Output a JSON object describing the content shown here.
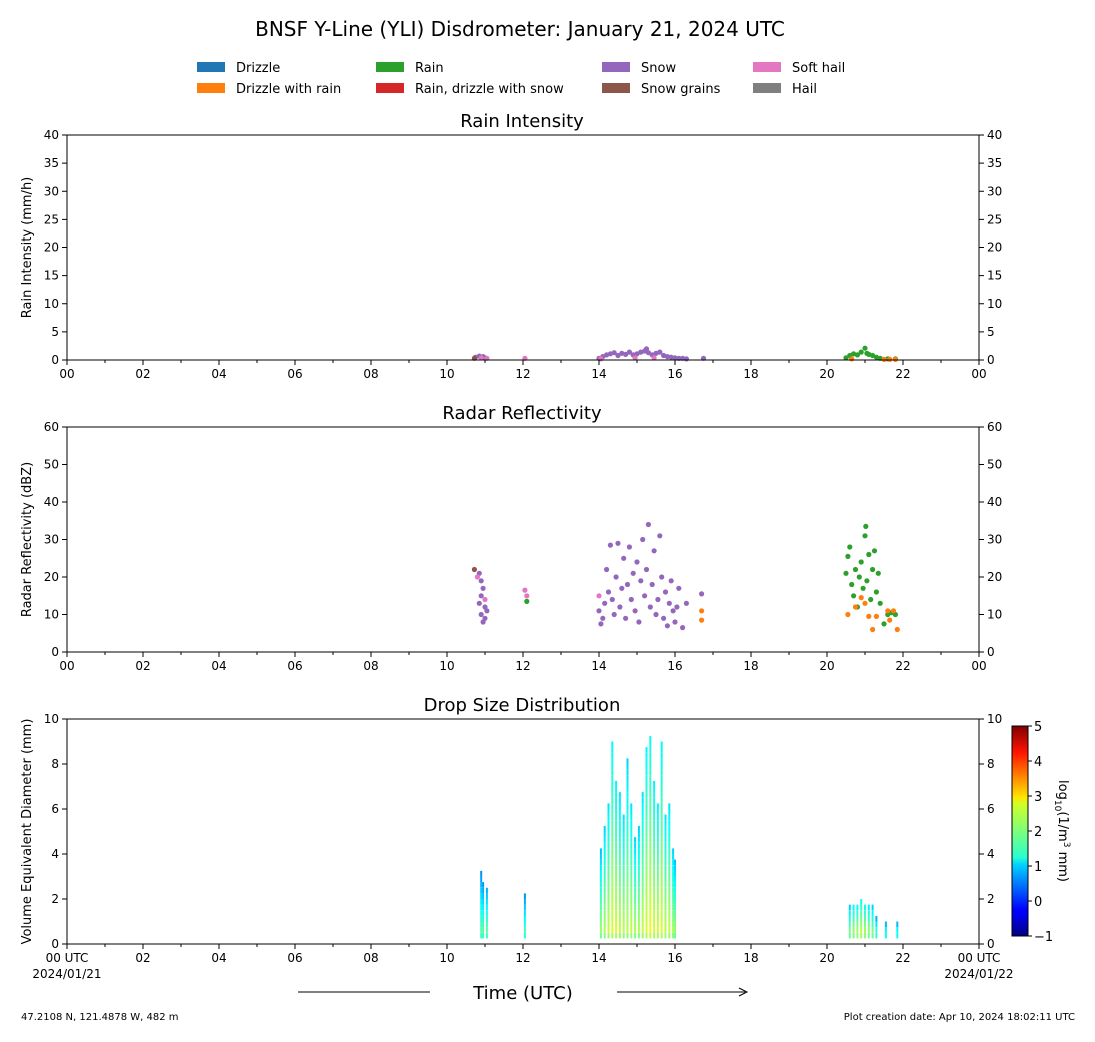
{
  "figure": {
    "title": "BNSF Y-Line (YLI) Disdrometer: January 21, 2024 UTC",
    "footer_left": "47.2108 N, 121.4878 W, 482 m",
    "footer_right": "Plot creation date: Apr 10, 2024 18:02:11 UTC",
    "xlabel": "Time (UTC)"
  },
  "legend": {
    "placement": "top",
    "entries": [
      {
        "label": "Drizzle",
        "color": "#1f77b4"
      },
      {
        "label": "Drizzle with rain",
        "color": "#ff7f0e"
      },
      {
        "label": "Rain",
        "color": "#2ca02c"
      },
      {
        "label": "Rain, drizzle with snow",
        "color": "#d62728"
      },
      {
        "label": "Snow",
        "color": "#9467bd"
      },
      {
        "label": "Snow grains",
        "color": "#8c564b"
      },
      {
        "label": "Soft hail",
        "color": "#e377c2"
      },
      {
        "label": "Hail",
        "color": "#7f7f7f"
      }
    ]
  },
  "chart_data": [
    {
      "type": "scatter",
      "title": "Rain Intensity",
      "ylabel": "Rain Intensity (mm/h)",
      "xlim": [
        0,
        24
      ],
      "ylim": [
        0,
        40
      ],
      "xticks": [
        "00",
        "02",
        "04",
        "06",
        "08",
        "10",
        "12",
        "14",
        "16",
        "18",
        "20",
        "22",
        "00"
      ],
      "yticks": [
        0,
        5,
        10,
        15,
        20,
        25,
        30,
        35,
        40
      ],
      "grid": false,
      "series": [
        {
          "name": "Snow",
          "color": "#9467bd",
          "points": [
            [
              10.75,
              0.5
            ],
            [
              10.85,
              0.7
            ],
            [
              10.95,
              0.6
            ],
            [
              11.0,
              0.4
            ],
            [
              14.0,
              0.3
            ],
            [
              14.1,
              0.6
            ],
            [
              14.2,
              0.9
            ],
            [
              14.3,
              1.1
            ],
            [
              14.4,
              1.3
            ],
            [
              14.5,
              0.8
            ],
            [
              14.6,
              1.2
            ],
            [
              14.7,
              1.0
            ],
            [
              14.8,
              1.4
            ],
            [
              14.9,
              0.9
            ],
            [
              15.0,
              1.1
            ],
            [
              15.1,
              1.4
            ],
            [
              15.2,
              1.6
            ],
            [
              15.25,
              2.0
            ],
            [
              15.3,
              1.3
            ],
            [
              15.4,
              0.9
            ],
            [
              15.5,
              1.2
            ],
            [
              15.6,
              1.4
            ],
            [
              15.7,
              0.8
            ],
            [
              15.8,
              0.6
            ],
            [
              15.9,
              0.5
            ],
            [
              16.0,
              0.4
            ],
            [
              16.1,
              0.3
            ],
            [
              16.2,
              0.3
            ],
            [
              16.3,
              0.2
            ],
            [
              16.75,
              0.3
            ]
          ]
        },
        {
          "name": "Soft hail",
          "color": "#e377c2",
          "points": [
            [
              10.9,
              0.4
            ],
            [
              11.05,
              0.3
            ],
            [
              12.05,
              0.3
            ],
            [
              14.05,
              0.2
            ],
            [
              14.95,
              0.4
            ],
            [
              15.45,
              0.4
            ]
          ]
        },
        {
          "name": "Snow grains",
          "color": "#8c564b",
          "points": [
            [
              10.72,
              0.3
            ]
          ]
        },
        {
          "name": "Rain",
          "color": "#2ca02c",
          "points": [
            [
              20.5,
              0.4
            ],
            [
              20.6,
              0.8
            ],
            [
              20.7,
              1.1
            ],
            [
              20.8,
              0.9
            ],
            [
              20.9,
              1.4
            ],
            [
              21.0,
              2.1
            ],
            [
              21.05,
              1.2
            ],
            [
              21.1,
              1.0
            ],
            [
              21.2,
              0.8
            ],
            [
              21.3,
              0.5
            ],
            [
              21.4,
              0.3
            ],
            [
              21.6,
              0.2
            ],
            [
              21.8,
              0.2
            ]
          ]
        },
        {
          "name": "Drizzle with rain",
          "color": "#ff7f0e",
          "points": [
            [
              20.65,
              0.2
            ],
            [
              21.5,
              0.1
            ],
            [
              21.65,
              0.1
            ],
            [
              21.8,
              0.1
            ]
          ]
        }
      ]
    },
    {
      "type": "scatter",
      "title": "Radar Reflectivity",
      "ylabel": "Radar Reflectivity (dBZ)",
      "xlim": [
        0,
        24
      ],
      "ylim": [
        0,
        60
      ],
      "xticks": [
        "00",
        "02",
        "04",
        "06",
        "08",
        "10",
        "12",
        "14",
        "16",
        "18",
        "20",
        "22",
        "00"
      ],
      "yticks": [
        0,
        10,
        20,
        30,
        40,
        50,
        60
      ],
      "grid": false,
      "series": [
        {
          "name": "Snow",
          "color": "#9467bd",
          "points": [
            [
              10.85,
              21
            ],
            [
              10.9,
              19
            ],
            [
              10.95,
              17
            ],
            [
              10.9,
              15
            ],
            [
              11.0,
              12
            ],
            [
              10.9,
              10
            ],
            [
              11.0,
              9
            ],
            [
              10.95,
              8
            ],
            [
              11.05,
              11
            ],
            [
              10.85,
              13
            ],
            [
              14.0,
              11
            ],
            [
              14.05,
              7.5
            ],
            [
              14.1,
              9
            ],
            [
              14.15,
              13
            ],
            [
              14.2,
              22
            ],
            [
              14.25,
              16
            ],
            [
              14.3,
              28.5
            ],
            [
              14.35,
              14
            ],
            [
              14.4,
              10
            ],
            [
              14.45,
              20
            ],
            [
              14.5,
              29
            ],
            [
              14.55,
              12
            ],
            [
              14.6,
              17
            ],
            [
              14.65,
              25
            ],
            [
              14.7,
              9
            ],
            [
              14.75,
              18
            ],
            [
              14.8,
              28
            ],
            [
              14.85,
              14
            ],
            [
              14.9,
              21
            ],
            [
              14.95,
              11
            ],
            [
              15.0,
              24
            ],
            [
              15.05,
              8
            ],
            [
              15.1,
              19
            ],
            [
              15.15,
              30
            ],
            [
              15.2,
              15
            ],
            [
              15.25,
              22
            ],
            [
              15.3,
              34
            ],
            [
              15.35,
              12
            ],
            [
              15.4,
              18
            ],
            [
              15.45,
              27
            ],
            [
              15.5,
              10
            ],
            [
              15.55,
              14
            ],
            [
              15.6,
              31
            ],
            [
              15.65,
              20
            ],
            [
              15.7,
              9
            ],
            [
              15.75,
              16
            ],
            [
              15.8,
              7
            ],
            [
              15.85,
              13
            ],
            [
              15.9,
              19
            ],
            [
              15.95,
              11
            ],
            [
              16.0,
              8
            ],
            [
              16.05,
              12
            ],
            [
              16.1,
              17
            ],
            [
              16.2,
              6.5
            ],
            [
              16.3,
              13
            ],
            [
              16.7,
              15.5
            ]
          ]
        },
        {
          "name": "Soft hail",
          "color": "#e377c2",
          "points": [
            [
              10.8,
              20
            ],
            [
              11.0,
              14
            ],
            [
              12.05,
              16.5
            ],
            [
              12.1,
              15
            ],
            [
              14.0,
              15
            ]
          ]
        },
        {
          "name": "Snow grains",
          "color": "#8c564b",
          "points": [
            [
              10.72,
              22
            ]
          ]
        },
        {
          "name": "Rain",
          "color": "#2ca02c",
          "points": [
            [
              12.1,
              13.5
            ],
            [
              20.5,
              21
            ],
            [
              20.55,
              25.5
            ],
            [
              20.6,
              28
            ],
            [
              20.65,
              18
            ],
            [
              20.7,
              15
            ],
            [
              20.75,
              22
            ],
            [
              20.8,
              12
            ],
            [
              20.85,
              20
            ],
            [
              20.9,
              24
            ],
            [
              20.95,
              17
            ],
            [
              21.0,
              31
            ],
            [
              21.02,
              33.5
            ],
            [
              21.05,
              19
            ],
            [
              21.1,
              26
            ],
            [
              21.15,
              14
            ],
            [
              21.2,
              22
            ],
            [
              21.25,
              27
            ],
            [
              21.3,
              16
            ],
            [
              21.35,
              21
            ],
            [
              21.4,
              13
            ],
            [
              21.5,
              7.5
            ],
            [
              21.6,
              10
            ],
            [
              21.7,
              10.5
            ],
            [
              21.8,
              10
            ]
          ]
        },
        {
          "name": "Drizzle with rain",
          "color": "#ff7f0e",
          "points": [
            [
              16.7,
              11
            ],
            [
              16.7,
              8.5
            ],
            [
              20.55,
              10
            ],
            [
              20.75,
              12
            ],
            [
              20.9,
              14.5
            ],
            [
              21.0,
              13
            ],
            [
              21.1,
              9.5
            ],
            [
              21.2,
              6
            ],
            [
              21.3,
              9.5
            ],
            [
              21.6,
              11
            ],
            [
              21.65,
              8.5
            ],
            [
              21.75,
              11
            ],
            [
              21.85,
              6
            ]
          ]
        }
      ]
    },
    {
      "type": "heatmap",
      "title": "Drop Size Distribution",
      "ylabel": "Volume Equivalent Diameter (mm)",
      "xlim": [
        0,
        24
      ],
      "ylim": [
        0,
        10
      ],
      "xticks": [
        "00 UTC\n2024/01/21",
        "02",
        "04",
        "06",
        "08",
        "10",
        "12",
        "14",
        "16",
        "18",
        "20",
        "22",
        "00 UTC\n2024/01/22"
      ],
      "yticks": [
        0,
        2,
        4,
        6,
        8,
        10
      ],
      "colorbar": {
        "label": "log10(1/m3 mm)",
        "range": [
          -1,
          5
        ],
        "ticks": [
          -1,
          0,
          1,
          2,
          3,
          4,
          5
        ],
        "colormap": "jet"
      },
      "columns": [
        {
          "t": 10.9,
          "top": 3.0,
          "peak": 2.0
        },
        {
          "t": 10.95,
          "top": 2.6,
          "peak": 2.0
        },
        {
          "t": 11.05,
          "top": 2.4,
          "peak": 2.1
        },
        {
          "t": 12.05,
          "top": 2.2,
          "peak": 1.9
        },
        {
          "t": 14.05,
          "top": 4.0,
          "peak": 2.3
        },
        {
          "t": 14.15,
          "top": 5.0,
          "peak": 2.4
        },
        {
          "t": 14.25,
          "top": 6.0,
          "peak": 2.5
        },
        {
          "t": 14.35,
          "top": 8.9,
          "peak": 2.6
        },
        {
          "t": 14.45,
          "top": 7.0,
          "peak": 2.6
        },
        {
          "t": 14.55,
          "top": 6.5,
          "peak": 2.5
        },
        {
          "t": 14.65,
          "top": 5.5,
          "peak": 2.5
        },
        {
          "t": 14.75,
          "top": 8.0,
          "peak": 2.4
        },
        {
          "t": 14.85,
          "top": 6.0,
          "peak": 2.5
        },
        {
          "t": 14.95,
          "top": 4.5,
          "peak": 2.4
        },
        {
          "t": 15.05,
          "top": 5.0,
          "peak": 2.4
        },
        {
          "t": 15.15,
          "top": 6.5,
          "peak": 2.5
        },
        {
          "t": 15.25,
          "top": 8.5,
          "peak": 2.6
        },
        {
          "t": 15.35,
          "top": 9.0,
          "peak": 2.7
        },
        {
          "t": 15.45,
          "top": 7.0,
          "peak": 2.6
        },
        {
          "t": 15.55,
          "top": 6.0,
          "peak": 2.6
        },
        {
          "t": 15.65,
          "top": 8.9,
          "peak": 2.6
        },
        {
          "t": 15.75,
          "top": 5.5,
          "peak": 2.5
        },
        {
          "t": 15.85,
          "top": 6.0,
          "peak": 2.5
        },
        {
          "t": 15.95,
          "top": 4.0,
          "peak": 2.4
        },
        {
          "t": 16.0,
          "top": 3.5,
          "peak": 2.3
        },
        {
          "t": 20.6,
          "top": 1.5,
          "peak": 2.4
        },
        {
          "t": 20.7,
          "top": 1.7,
          "peak": 2.5
        },
        {
          "t": 20.8,
          "top": 1.6,
          "peak": 2.6
        },
        {
          "t": 20.9,
          "top": 1.8,
          "peak": 2.7
        },
        {
          "t": 21.0,
          "top": 1.7,
          "peak": 2.6
        },
        {
          "t": 21.1,
          "top": 1.6,
          "peak": 2.5
        },
        {
          "t": 21.2,
          "top": 1.5,
          "peak": 2.4
        },
        {
          "t": 21.3,
          "top": 1.0,
          "peak": 2.2
        },
        {
          "t": 21.55,
          "top": 0.9,
          "peak": 2.0
        },
        {
          "t": 21.85,
          "top": 0.9,
          "peak": 2.0
        }
      ]
    }
  ]
}
